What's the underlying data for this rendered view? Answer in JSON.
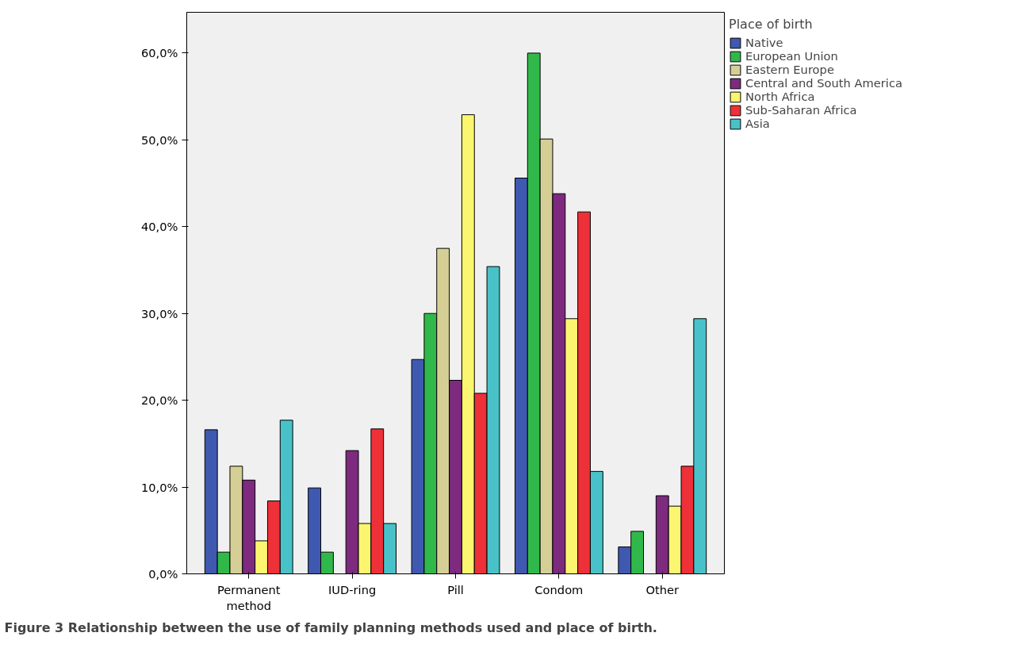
{
  "chart_data": {
    "type": "bar",
    "categories": [
      "Permanent\nmethod",
      "IUD-ring",
      "Pill",
      "Condom",
      "Other"
    ],
    "series": [
      {
        "name": "Native",
        "color": "#3f59b0",
        "values": [
          16.6,
          9.9,
          24.7,
          45.6,
          3.1
        ]
      },
      {
        "name": "European Union",
        "color": "#30b94a",
        "values": [
          2.5,
          2.5,
          30.0,
          60.0,
          4.9
        ]
      },
      {
        "name": "Eastern Europe",
        "color": "#d5cf96",
        "values": [
          12.4,
          null,
          37.5,
          50.1,
          null
        ]
      },
      {
        "name": "Central and South America",
        "color": "#7d2a7f",
        "values": [
          10.8,
          14.2,
          22.3,
          43.8,
          9.0
        ]
      },
      {
        "name": "North Africa",
        "color": "#fbf56f",
        "values": [
          3.8,
          5.8,
          52.9,
          29.4,
          7.8
        ]
      },
      {
        "name": "Sub-Saharan Africa",
        "color": "#ee3038",
        "values": [
          8.4,
          16.7,
          20.8,
          41.7,
          12.4
        ]
      },
      {
        "name": "Asia",
        "color": "#48c2c8",
        "values": [
          17.7,
          5.8,
          35.4,
          11.8,
          29.4
        ]
      }
    ],
    "ylim": [
      0,
      64.7
    ],
    "yticks": [
      {
        "value": 0,
        "label": "0,0%"
      },
      {
        "value": 10,
        "label": "10,0%"
      },
      {
        "value": 20,
        "label": "20,0%"
      },
      {
        "value": 30,
        "label": "30,0%"
      },
      {
        "value": 40,
        "label": "40,0%"
      },
      {
        "value": 50,
        "label": "50,0%"
      },
      {
        "value": 60,
        "label": "60,0%"
      }
    ],
    "legend_title": "Place of birth",
    "legend": "top right",
    "grid": false,
    "annotations": [
      "Figure 3 Relationship between the use of family planning methods used and place of birth."
    ]
  }
}
